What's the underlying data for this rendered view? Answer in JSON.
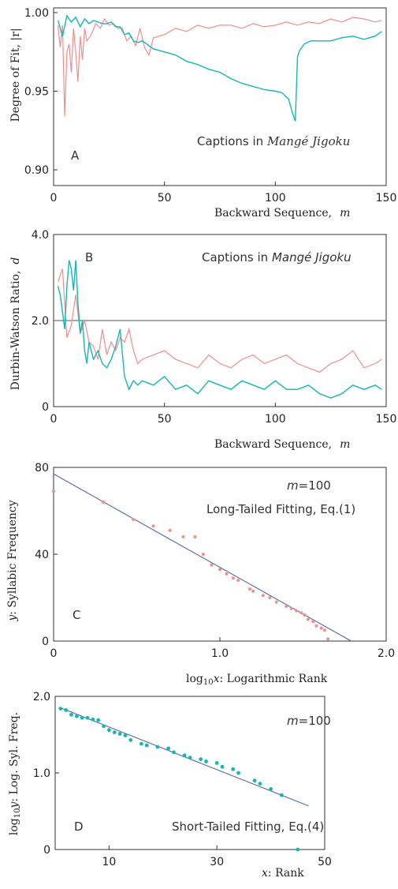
{
  "colors": {
    "pink": "#ef8f8c",
    "cyan": "#14b6b8",
    "fit_line": "#5566aa"
  },
  "chart_data": [
    {
      "id": "A",
      "type": "line",
      "panel_label": "A",
      "annotation": "Captions in Mangé Jigoku",
      "annotation_plain": "Captions in ",
      "annotation_italic": "Mangé Jigoku",
      "xlabel": "Backward Sequence,  m",
      "xlabel_text": "Backward Sequence,",
      "xlabel_var": "m",
      "ylabel": "Degree of Fit, |r|",
      "xlim": [
        0,
        150
      ],
      "ylim": [
        0.89,
        1.003
      ],
      "xticks": [
        0,
        50,
        100,
        150
      ],
      "yticks": [
        0.9,
        0.95,
        1.0
      ],
      "ytick_labels": [
        "0.90",
        "0.95",
        "1.00"
      ],
      "series": [
        {
          "color": "pink",
          "x": [
            2,
            3,
            4,
            5,
            6,
            7,
            8,
            9,
            10,
            11,
            12,
            13,
            14,
            15,
            17,
            19,
            21,
            23,
            25,
            27,
            29,
            31,
            33,
            35,
            37,
            39,
            41,
            43,
            45,
            50,
            55,
            60,
            65,
            70,
            75,
            80,
            85,
            90,
            95,
            100,
            105,
            110,
            115,
            120,
            125,
            130,
            135,
            140,
            145,
            148
          ],
          "y": [
            0.992,
            0.978,
            0.992,
            0.934,
            0.975,
            0.98,
            0.962,
            0.99,
            0.975,
            0.956,
            0.985,
            0.97,
            0.99,
            0.982,
            0.986,
            0.993,
            0.99,
            0.996,
            0.992,
            0.993,
            0.99,
            0.99,
            0.982,
            0.985,
            0.979,
            0.99,
            0.978,
            0.973,
            0.984,
            0.986,
            0.99,
            0.988,
            0.992,
            0.99,
            0.992,
            0.992,
            0.99,
            0.993,
            0.991,
            0.992,
            0.994,
            0.992,
            0.994,
            0.993,
            0.996,
            0.994,
            0.997,
            0.996,
            0.994,
            0.995
          ]
        },
        {
          "color": "cyan",
          "x": [
            2,
            4,
            6,
            8,
            10,
            12,
            14,
            16,
            18,
            20,
            22,
            24,
            26,
            28,
            30,
            32,
            34,
            36,
            38,
            40,
            45,
            50,
            55,
            60,
            65,
            70,
            75,
            80,
            85,
            90,
            95,
            100,
            103,
            106,
            108,
            109,
            110,
            111,
            113,
            116,
            120,
            125,
            130,
            135,
            140,
            145,
            148
          ],
          "y": [
            0.995,
            0.985,
            0.998,
            0.994,
            0.997,
            0.991,
            0.996,
            0.993,
            0.995,
            0.994,
            0.993,
            0.993,
            0.994,
            0.991,
            0.991,
            0.986,
            0.987,
            0.982,
            0.981,
            0.982,
            0.977,
            0.975,
            0.973,
            0.969,
            0.967,
            0.964,
            0.962,
            0.958,
            0.955,
            0.953,
            0.951,
            0.95,
            0.949,
            0.945,
            0.935,
            0.931,
            0.972,
            0.976,
            0.98,
            0.982,
            0.982,
            0.982,
            0.984,
            0.985,
            0.983,
            0.985,
            0.988
          ]
        }
      ]
    },
    {
      "id": "B",
      "type": "line",
      "panel_label": "B",
      "annotation": "Captions in Mangé Jigoku",
      "annotation_plain": "Captions in ",
      "annotation_italic": "Mangé Jigoku",
      "xlabel": "Backward Sequence,  m",
      "xlabel_text": "Backward Sequence,",
      "xlabel_var": "m",
      "ylabel": "Durbin-Watson Ratio,  d",
      "ylabel_text": "Durbin-Watson Ratio,",
      "ylabel_var": "d",
      "xlim": [
        0,
        150
      ],
      "ylim": [
        0,
        4.0
      ],
      "xticks": [
        0,
        50,
        100,
        150
      ],
      "yticks": [
        0,
        2.0,
        4.0
      ],
      "ytick_labels": [
        "0",
        "2.0",
        "4.0"
      ],
      "reference_line": 2.0,
      "series": [
        {
          "color": "pink",
          "x": [
            2,
            4,
            6,
            8,
            10,
            12,
            14,
            16,
            18,
            20,
            22,
            24,
            26,
            28,
            30,
            32,
            34,
            36,
            38,
            40,
            45,
            50,
            55,
            60,
            65,
            70,
            75,
            80,
            85,
            90,
            95,
            100,
            105,
            110,
            115,
            120,
            125,
            130,
            135,
            140,
            145,
            148
          ],
          "y": [
            2.9,
            3.2,
            1.6,
            1.9,
            2.6,
            1.7,
            2.0,
            1.5,
            1.4,
            1.1,
            1.8,
            1.2,
            1.5,
            1.3,
            1.6,
            1.5,
            1.8,
            1.3,
            1.0,
            1.1,
            1.2,
            1.3,
            1.1,
            1.0,
            0.9,
            1.2,
            1.0,
            0.9,
            1.1,
            1.2,
            1.0,
            1.1,
            1.2,
            1.0,
            0.9,
            0.8,
            1.0,
            1.1,
            1.3,
            0.9,
            1.0,
            1.1
          ]
        },
        {
          "color": "cyan",
          "x": [
            2,
            3,
            4,
            5,
            6,
            7,
            8,
            9,
            10,
            11,
            12,
            13,
            14,
            15,
            16,
            18,
            20,
            22,
            24,
            26,
            28,
            30,
            32,
            34,
            36,
            38,
            40,
            45,
            50,
            55,
            60,
            65,
            70,
            75,
            80,
            85,
            90,
            95,
            100,
            105,
            110,
            115,
            120,
            125,
            130,
            135,
            140,
            145,
            148
          ],
          "y": [
            2.8,
            2.6,
            2.2,
            1.8,
            2.8,
            3.4,
            3.2,
            2.7,
            3.4,
            2.4,
            1.7,
            2.0,
            1.3,
            1.0,
            1.5,
            1.1,
            1.3,
            1.0,
            0.9,
            1.1,
            1.4,
            1.8,
            0.7,
            0.4,
            0.6,
            0.5,
            0.6,
            0.5,
            0.7,
            0.4,
            0.5,
            0.3,
            0.6,
            0.5,
            0.4,
            0.6,
            0.5,
            0.4,
            0.6,
            0.4,
            0.4,
            0.5,
            0.3,
            0.2,
            0.3,
            0.5,
            0.4,
            0.5,
            0.4
          ]
        }
      ]
    },
    {
      "id": "C",
      "type": "scatter",
      "panel_label": "C",
      "annotation_m": "m=100",
      "annotation_m_var": "m",
      "annotation_m_val": "=100",
      "annotation": "Long-Tailed Fitting,  Eq.(1)",
      "xlabel": "log10x: Logarithmic Rank",
      "xlabel_parts": {
        "log": "log",
        "sub": "10",
        "var": "x",
        "rest": ": Logarithmic Rank"
      },
      "ylabel": "y: Syllabic Frequency",
      "ylabel_var": "y",
      "ylabel_rest": ": Syllabic Frequency",
      "xlim": [
        0,
        2.0
      ],
      "ylim": [
        0,
        80
      ],
      "xticks": [
        0,
        1.0,
        2.0
      ],
      "xtick_labels": [
        "0",
        "1.0",
        "2.0"
      ],
      "yticks": [
        0,
        40,
        80
      ],
      "yticks_labels": [
        "0",
        "40",
        "80"
      ],
      "fit_line": {
        "x": [
          0,
          1.79
        ],
        "y": [
          77,
          0
        ]
      },
      "points": {
        "color": "pink",
        "x": [
          0.0,
          0.3,
          0.48,
          0.6,
          0.7,
          0.78,
          0.85,
          0.9,
          0.95,
          1.0,
          1.04,
          1.08,
          1.11,
          1.18,
          1.2,
          1.26,
          1.3,
          1.34,
          1.4,
          1.43,
          1.46,
          1.49,
          1.51,
          1.53,
          1.56,
          1.58,
          1.61,
          1.63,
          1.65
        ],
        "y": [
          69,
          64,
          56,
          53,
          51,
          48,
          48,
          40,
          35,
          33,
          31,
          29,
          28,
          24,
          23,
          21,
          20,
          18,
          16,
          15,
          14,
          13,
          12,
          10,
          9,
          7,
          6,
          5,
          1
        ]
      }
    },
    {
      "id": "D",
      "type": "scatter",
      "panel_label": "D",
      "annotation_m": "m=100",
      "annotation_m_var": "m",
      "annotation_m_val": "=100",
      "annotation": "Short-Tailed Fitting,  Eq.(4)",
      "xlabel": "x: Rank",
      "xlabel_var": "x",
      "xlabel_rest": ": Rank",
      "ylabel": "log10y: Log. Syl. Freq.",
      "ylabel_parts": {
        "log": "log",
        "sub": "10",
        "var": "y",
        "rest": ": Log. Syl. Freq."
      },
      "xlim": [
        0,
        50
      ],
      "ylim": [
        0,
        2.0
      ],
      "xticks": [
        10,
        30,
        50
      ],
      "yticks": [
        0,
        1.0,
        2.0
      ],
      "ytick_labels": [
        "0",
        "1.0",
        "2.0"
      ],
      "fit_line": {
        "x": [
          1,
          47
        ],
        "y": [
          1.85,
          0.57
        ]
      },
      "points": {
        "color": "cyan",
        "x": [
          1,
          2,
          3,
          4,
          5,
          6,
          7,
          8,
          9,
          10,
          11,
          12,
          13,
          14,
          16,
          17,
          19,
          21,
          22,
          24,
          25,
          27,
          28,
          30,
          31,
          33,
          34,
          37,
          38,
          40,
          42,
          45
        ],
        "y": [
          1.84,
          1.82,
          1.76,
          1.74,
          1.72,
          1.72,
          1.7,
          1.69,
          1.61,
          1.56,
          1.53,
          1.51,
          1.49,
          1.43,
          1.38,
          1.36,
          1.34,
          1.32,
          1.27,
          1.23,
          1.2,
          1.18,
          1.15,
          1.13,
          1.08,
          1.05,
          1.0,
          0.9,
          0.86,
          0.79,
          0.71,
          0.0
        ]
      }
    }
  ]
}
